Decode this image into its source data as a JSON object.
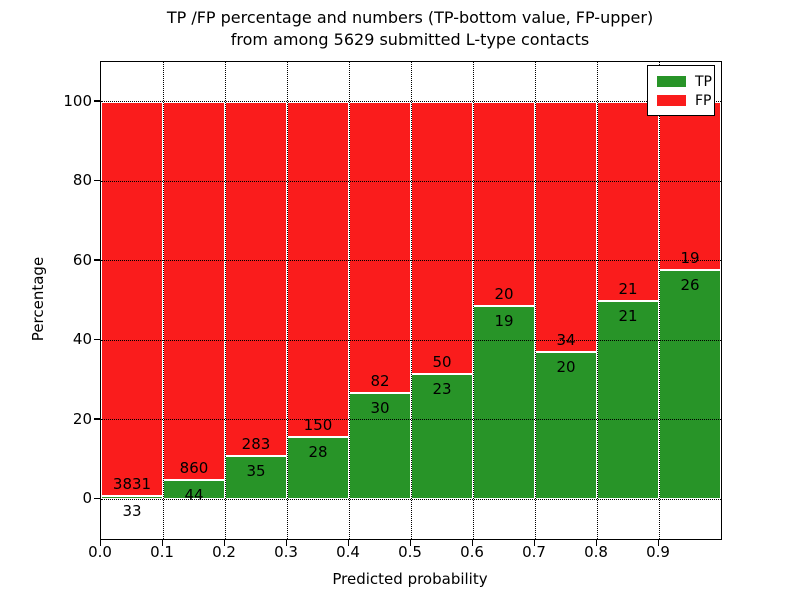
{
  "figure": {
    "title_line1": "TP /FP percentage and numbers (TP-bottom value, FP-upper)",
    "title_line2": "from among 5629 submitted L-type contacts"
  },
  "chart_data": {
    "type": "bar",
    "stacked": true,
    "normalized_to_percent": true,
    "title": "TP /FP percentage and numbers (TP-bottom value, FP-upper) from among 5629 submitted L-type contacts",
    "xlabel": "Predicted probability",
    "ylabel": "Percentage",
    "total_contacts": 5629,
    "categories": [
      "0.0-0.1",
      "0.1-0.2",
      "0.2-0.3",
      "0.3-0.4",
      "0.4-0.5",
      "0.5-0.6",
      "0.6-0.7",
      "0.7-0.8",
      "0.8-0.9",
      "0.9-1.0"
    ],
    "series": [
      {
        "name": "TP",
        "color": "#289428",
        "counts": [
          33,
          44,
          35,
          28,
          30,
          23,
          19,
          20,
          21,
          26
        ]
      },
      {
        "name": "FP",
        "color": "#fa1c1c",
        "counts": [
          3831,
          860,
          283,
          150,
          82,
          50,
          20,
          34,
          21,
          19
        ]
      }
    ],
    "tp_percent_of_bin": [
      0.85,
      4.87,
      11.01,
      15.73,
      26.79,
      31.51,
      48.72,
      37.04,
      50.0,
      57.78
    ],
    "xticks": [
      "0.0",
      "0.1",
      "0.2",
      "0.3",
      "0.4",
      "0.5",
      "0.6",
      "0.7",
      "0.8",
      "0.9"
    ],
    "yticks": [
      0,
      20,
      40,
      60,
      80,
      100
    ],
    "xlim": [
      0.0,
      1.0
    ],
    "ylim": [
      -10,
      110
    ],
    "grid": true,
    "grid_style": "dotted",
    "legend_position": "upper right",
    "bar_edge_color": "#ffffff"
  }
}
